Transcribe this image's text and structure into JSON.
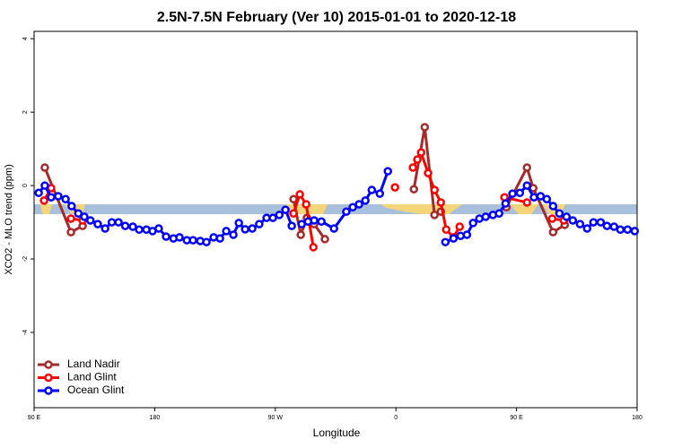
{
  "chart_data": {
    "type": "line",
    "title": "2.5N-7.5N February (Ver 10)   2015-01-01 to 2020-12-18",
    "x_label": "Longitude",
    "y_label": "XCO2 - MLO trend (ppm)",
    "xlim": [
      90,
      540
    ],
    "ylim": [
      -6.05,
      4.2
    ],
    "xticks": [
      {
        "value": 90,
        "label": "90 E"
      },
      180,
      {
        "value": 270,
        "label": "90 W"
      },
      {
        "value": 360,
        "label": "0"
      },
      {
        "value": 450,
        "label": "90 E"
      },
      {
        "value": 540,
        "label": "180"
      }
    ],
    "yticks": [
      4,
      2,
      0,
      -2,
      -4
    ],
    "legend": "bottom-left",
    "series": [
      {
        "name": "Land Nadir",
        "color": "#a52a2a",
        "x": [
          98,
          117.5,
          126.2,
          null,
          283.6,
          289,
          293.6,
          299,
          307,
          null,
          373.4,
          381.5,
          388.8,
          393.5,
          null,
          442.5,
          457.8,
          462.5,
          477.3,
          486
        ],
        "values": [
          0.49,
          -1.27,
          -1.1,
          null,
          -0.37,
          -1.34,
          -0.88,
          -1.05,
          -1.46,
          null,
          -0.1,
          1.59,
          -0.8,
          -0.71,
          null,
          -0.59,
          0.49,
          -0.07,
          -1.27,
          -1.07
        ]
      },
      {
        "name": "Land Glint",
        "color": "#ff0000",
        "x": [
          97.4,
          102.7,
          null,
          117.5,
          126.2,
          null,
          283.6,
          288.3,
          293,
          298.4,
          null,
          359.3,
          null,
          372.7,
          376,
          378.8,
          384,
          388.8,
          393.5,
          397.5,
          403,
          407.6,
          null,
          441,
          457.8,
          null,
          476.6,
          485.3
        ],
        "values": [
          -0.41,
          -0.07,
          null,
          -0.9,
          -0.95,
          null,
          -0.76,
          -0.24,
          -0.51,
          -1.68,
          null,
          -0.05,
          null,
          0.49,
          0.71,
          0.9,
          0.34,
          -0.12,
          -0.46,
          -1.2,
          -1.41,
          -1.12,
          null,
          -0.32,
          -0.46,
          null,
          -0.9,
          -0.95
        ]
      },
      {
        "name": "Ocean Glint",
        "color": "#0000ff",
        "x": [
          93.4,
          98,
          102.7,
          108,
          113.5,
          118,
          123,
          127.5,
          132,
          137.5,
          143,
          148,
          153,
          158,
          163.7,
          168.4,
          173.8,
          178.4,
          183,
          188.5,
          194,
          198.5,
          204,
          208.6,
          214,
          218.6,
          224,
          228.7,
          233.4,
          238.7,
          242.8,
          247.5,
          252.8,
          258,
          263.5,
          268.2,
          273,
          277.6,
          282.3,
          null,
          289.7,
          294.4,
          299,
          304.4,
          313.8,
          323,
          327.8,
          332.5,
          337.2,
          342,
          348,
          354,
          null,
          396.9,
          403,
          408.3,
          413,
          417.6,
          422.3,
          427,
          432.4,
          437,
          441.8,
          447,
          452.5,
          457.8,
          463,
          468,
          472.6,
          477.3,
          482,
          487.3,
          492,
          497.4,
          502.7,
          507.4,
          512.8,
          517.5,
          522.8,
          527.5,
          532.9,
          538.2
        ],
        "values": [
          -0.2,
          0,
          -0.32,
          -0.29,
          -0.37,
          -0.56,
          -0.76,
          -0.85,
          -0.95,
          -1.05,
          -1.17,
          -1.0,
          -1.0,
          -1.1,
          -1.12,
          -1.2,
          -1.2,
          -1.24,
          -1.17,
          -1.39,
          -1.44,
          -1.41,
          -1.49,
          -1.49,
          -1.51,
          -1.54,
          -1.41,
          -1.44,
          -1.24,
          -1.34,
          -1.02,
          -1.19,
          -1.17,
          -1.05,
          -0.88,
          -0.88,
          -0.8,
          -0.66,
          -1.1,
          null,
          -1.05,
          -0.98,
          -0.95,
          -0.98,
          -1.17,
          -0.71,
          -0.59,
          -0.51,
          -0.41,
          -0.12,
          -0.22,
          0.39,
          null,
          -1.54,
          -1.44,
          -1.37,
          -1.34,
          -1.02,
          -0.9,
          -0.85,
          -0.8,
          -0.76,
          -0.49,
          -0.22,
          -0.2,
          0,
          -0.32,
          -0.29,
          -0.37,
          -0.56,
          -0.76,
          -0.85,
          -0.95,
          -1.05,
          -1.17,
          -1.0,
          -1.0,
          -1.1,
          -1.12,
          -1.2,
          -1.2,
          -1.24
        ]
      }
    ]
  }
}
